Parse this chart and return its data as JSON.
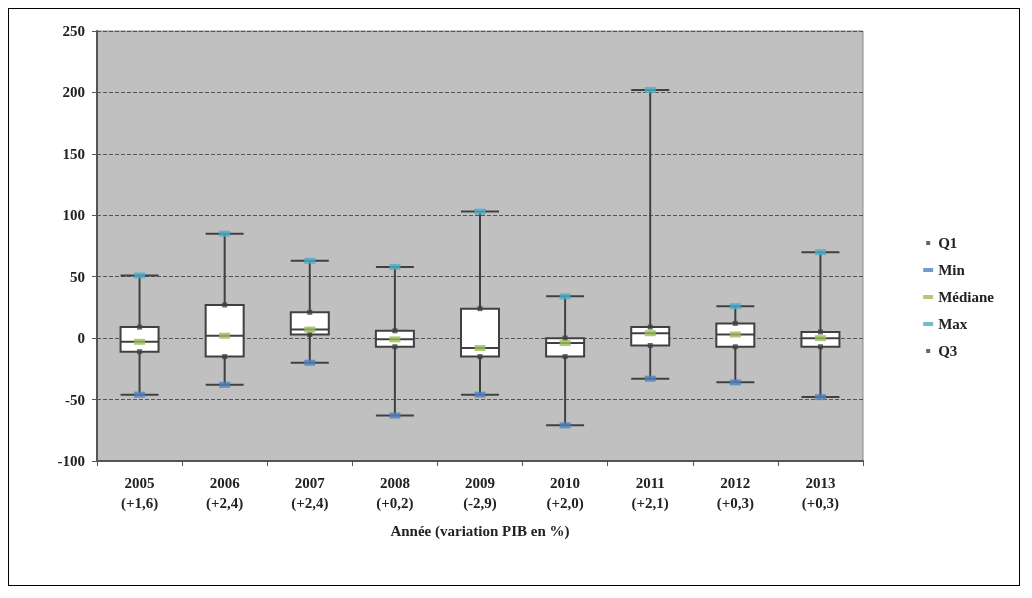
{
  "chart_data": {
    "type": "box",
    "xlabel": "Année (variation PIB en %)",
    "categories": [
      "2005\n(+1,6)",
      "2006\n(+2,4)",
      "2007\n(+2,4)",
      "2008\n(+0,2)",
      "2009\n(-2,9)",
      "2010\n(+2,0)",
      "2011\n(+2,1)",
      "2012\n(+0,3)",
      "2013\n(+0,3)"
    ],
    "boxes": [
      {
        "low": -46,
        "q1": -11,
        "median": -3,
        "q3": 9,
        "high": 51
      },
      {
        "low": -38,
        "q1": -15,
        "median": 2,
        "q3": 27,
        "high": 85
      },
      {
        "low": -20,
        "q1": 3,
        "median": 7,
        "q3": 21,
        "high": 63
      },
      {
        "low": -63,
        "q1": -7,
        "median": -1,
        "q3": 6,
        "high": 58
      },
      {
        "low": -46,
        "q1": -15,
        "median": -8,
        "q3": 24,
        "high": 103
      },
      {
        "low": -71,
        "q1": -15,
        "median": -4,
        "q3": 0,
        "high": 34
      },
      {
        "low": -33,
        "q1": -6,
        "median": 4,
        "q3": 9,
        "high": 202
      },
      {
        "low": -36,
        "q1": -7,
        "median": 3,
        "q3": 12,
        "high": 26
      },
      {
        "low": -48,
        "q1": -7,
        "median": 0,
        "q3": 5,
        "high": 70
      }
    ],
    "series": [
      {
        "name": "Q1",
        "type": "scatter",
        "values": [
          -11,
          -15,
          3,
          -7,
          -15,
          -15,
          -6,
          -7,
          -7
        ]
      },
      {
        "name": "Min",
        "type": "scatter",
        "color": "#4f81bd",
        "values": [
          -46,
          -38,
          -20,
          -63,
          -46,
          -71,
          -33,
          -36,
          -48
        ]
      },
      {
        "name": "Médiane",
        "type": "scatter",
        "color": "#9bbb59",
        "values": [
          -3,
          2,
          7,
          -1,
          -8,
          -4,
          4,
          3,
          0
        ]
      },
      {
        "name": "Max",
        "type": "scatter",
        "color": "#4bacc6",
        "values": [
          51,
          85,
          63,
          58,
          103,
          34,
          202,
          26,
          70
        ]
      },
      {
        "name": "Q3",
        "type": "scatter",
        "values": [
          9,
          27,
          21,
          6,
          24,
          0,
          9,
          12,
          5
        ]
      }
    ],
    "ylim": [
      -100,
      250
    ],
    "yticks": [
      -100,
      -50,
      0,
      50,
      100,
      150,
      200,
      250
    ],
    "grid": "y",
    "legend": "right"
  }
}
